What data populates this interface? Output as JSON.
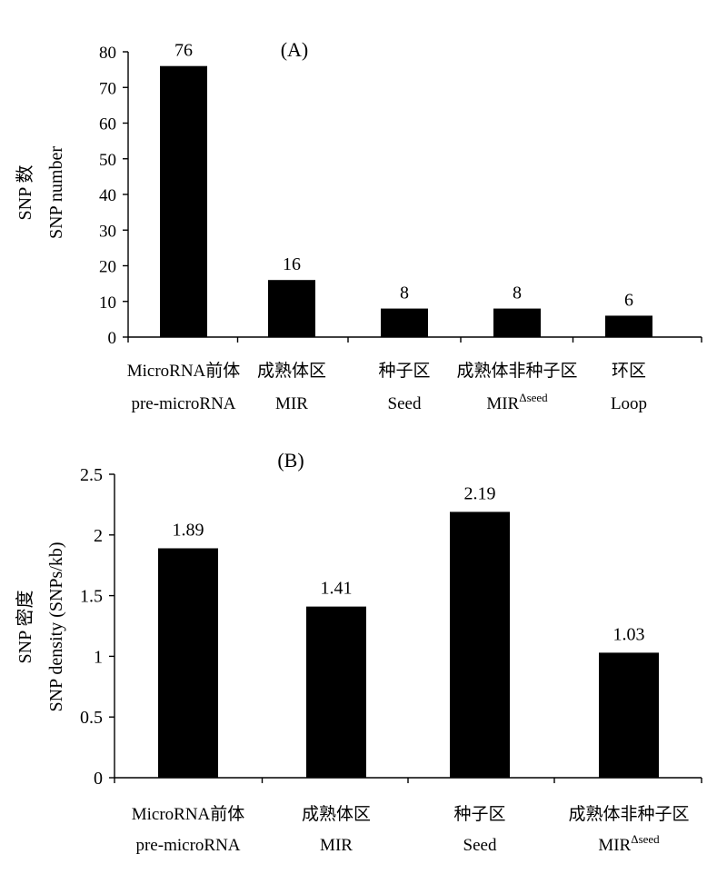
{
  "chart_data": [
    {
      "type": "bar",
      "panel_label": "(A)",
      "ylabel_lines": [
        "SNP 数",
        "SNP number"
      ],
      "ylim": [
        0,
        80
      ],
      "yticks": [
        0,
        10,
        20,
        30,
        40,
        50,
        60,
        70,
        80
      ],
      "grid": false,
      "categories": [
        {
          "line1": "MicroRNA前体",
          "line2": "pre-microRNA",
          "line2_sup": ""
        },
        {
          "line1": "成熟体区",
          "line2": "MIR",
          "line2_sup": ""
        },
        {
          "line1": "种子区",
          "line2": "Seed",
          "line2_sup": ""
        },
        {
          "line1": "成熟体非种子区",
          "line2": "MIR",
          "line2_sup": "Δseed"
        },
        {
          "line1": "环区",
          "line2": "Loop",
          "line2_sup": ""
        }
      ],
      "values": [
        76,
        16,
        8,
        8,
        6
      ],
      "data_labels": [
        "76",
        "16",
        "8",
        "8",
        "6"
      ],
      "bar_color": "#000000"
    },
    {
      "type": "bar",
      "panel_label": "(B)",
      "ylabel_lines": [
        "SNP 密度",
        "SNP density (SNPs/kb)"
      ],
      "ylim": [
        0,
        2.5
      ],
      "yticks": [
        0,
        0.5,
        1,
        1.5,
        2,
        2.5
      ],
      "ytick_labels": [
        "0",
        "0.5",
        "1",
        "1.5",
        "2",
        "2.5"
      ],
      "grid": false,
      "categories": [
        {
          "line1": "MicroRNA前体",
          "line2": "pre-microRNA",
          "line2_sup": ""
        },
        {
          "line1": "成熟体区",
          "line2": "MIR",
          "line2_sup": ""
        },
        {
          "line1": "种子区",
          "line2": "Seed",
          "line2_sup": ""
        },
        {
          "line1": "成熟体非种子区",
          "line2": "MIR",
          "line2_sup": "Δseed"
        }
      ],
      "values": [
        1.89,
        1.41,
        2.19,
        1.03
      ],
      "data_labels": [
        "1.89",
        "1.41",
        "2.19",
        "1.03"
      ],
      "bar_color": "#000000"
    }
  ]
}
